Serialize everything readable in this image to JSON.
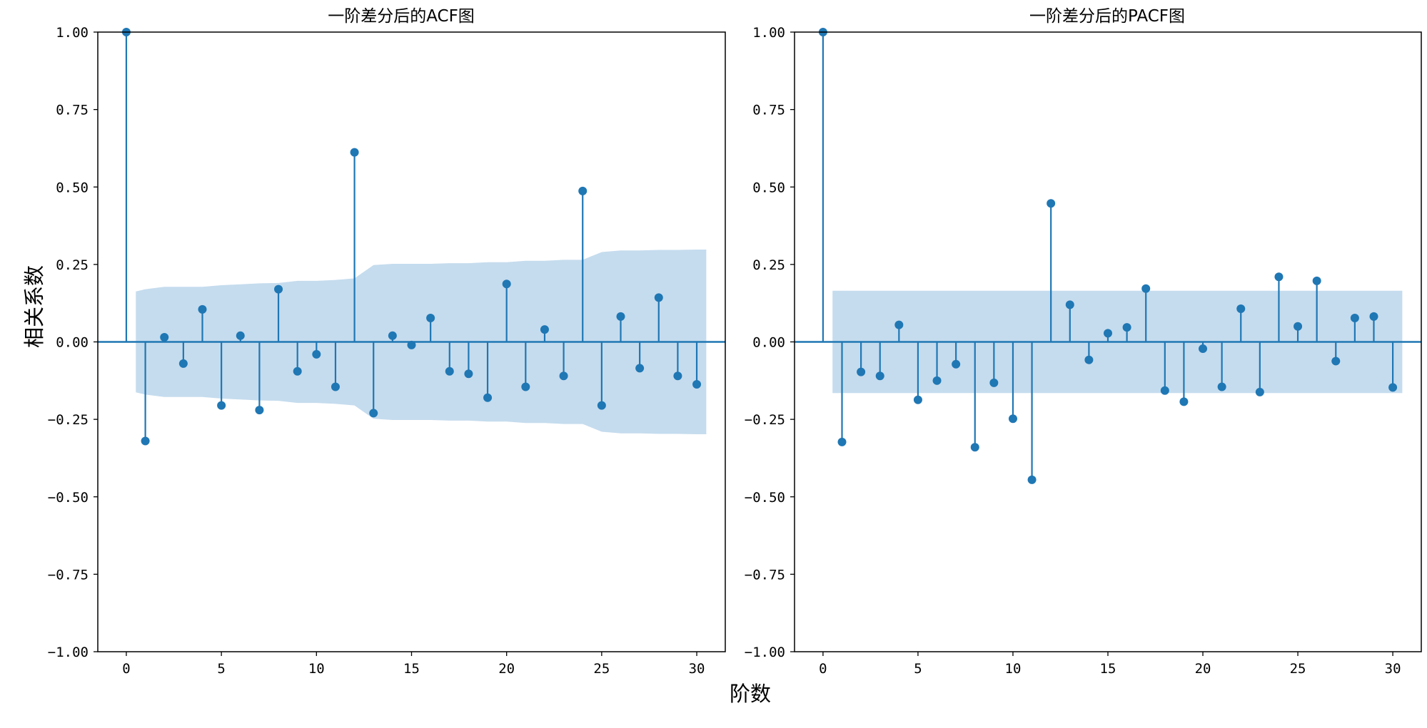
{
  "figure": {
    "xlabel": "阶数",
    "ylabel": "相关系数"
  },
  "colors": {
    "stem": "#1f77b4",
    "band": "#c5dcee",
    "axis": "#000000"
  },
  "chart_data": [
    {
      "type": "stem",
      "title": "一阶差分后的ACF图",
      "xlim": [
        -1.5,
        31.5
      ],
      "ylim": [
        -1.0,
        1.0
      ],
      "xticks": [
        0,
        5,
        10,
        15,
        20,
        25,
        30
      ],
      "xtick_labels": [
        "0",
        "5",
        "10",
        "15",
        "20",
        "25",
        "30"
      ],
      "yticks": [
        1.0,
        0.75,
        0.5,
        0.25,
        0.0,
        -0.25,
        -0.5,
        -0.75,
        -1.0
      ],
      "ytick_labels": [
        "1.00",
        "0.75",
        "0.50",
        "0.25",
        "0.00",
        "−0.25",
        "−0.50",
        "−0.75",
        "−1.00"
      ],
      "x": [
        0,
        1,
        2,
        3,
        4,
        5,
        6,
        7,
        8,
        9,
        10,
        11,
        12,
        13,
        14,
        15,
        16,
        17,
        18,
        19,
        20,
        21,
        22,
        23,
        24,
        25,
        26,
        27,
        28,
        29,
        30
      ],
      "values": [
        1.0,
        -0.32,
        0.015,
        -0.07,
        0.105,
        -0.205,
        0.02,
        -0.22,
        0.17,
        -0.095,
        -0.04,
        -0.145,
        0.612,
        -0.23,
        0.02,
        -0.01,
        0.077,
        -0.095,
        -0.103,
        -0.18,
        0.187,
        -0.145,
        0.04,
        -0.11,
        0.487,
        -0.205,
        0.082,
        -0.085,
        0.143,
        -0.11,
        -0.137
      ],
      "confidence_band": {
        "x": [
          0.5,
          1,
          2,
          3,
          4,
          5,
          6,
          7,
          8,
          9,
          10,
          11,
          12,
          13,
          14,
          15,
          16,
          17,
          18,
          19,
          20,
          21,
          22,
          23,
          24,
          25,
          26,
          27,
          28,
          29,
          30,
          30.5
        ],
        "upper": [
          0.163,
          0.17,
          0.178,
          0.178,
          0.178,
          0.183,
          0.186,
          0.189,
          0.19,
          0.197,
          0.197,
          0.2,
          0.205,
          0.248,
          0.252,
          0.252,
          0.252,
          0.254,
          0.254,
          0.257,
          0.257,
          0.262,
          0.262,
          0.265,
          0.265,
          0.29,
          0.295,
          0.295,
          0.297,
          0.297,
          0.298,
          0.298
        ]
      },
      "confidence_band_symmetric": true
    },
    {
      "type": "stem",
      "title": "一阶差分后的PACF图",
      "xlim": [
        -1.5,
        31.5
      ],
      "ylim": [
        -1.0,
        1.0
      ],
      "xticks": [
        0,
        5,
        10,
        15,
        20,
        25,
        30
      ],
      "xtick_labels": [
        "0",
        "5",
        "10",
        "15",
        "20",
        "25",
        "30"
      ],
      "yticks": [
        1.0,
        0.75,
        0.5,
        0.25,
        0.0,
        -0.25,
        -0.5,
        -0.75,
        -1.0
      ],
      "ytick_labels": [
        "1.00",
        "0.75",
        "0.50",
        "0.25",
        "0.00",
        "−0.25",
        "−0.50",
        "−0.75",
        "−1.00"
      ],
      "x": [
        0,
        1,
        2,
        3,
        4,
        5,
        6,
        7,
        8,
        9,
        10,
        11,
        12,
        13,
        14,
        15,
        16,
        17,
        18,
        19,
        20,
        21,
        22,
        23,
        24,
        25,
        26,
        27,
        28,
        29,
        30
      ],
      "values": [
        1.0,
        -0.323,
        -0.097,
        -0.11,
        0.055,
        -0.187,
        -0.125,
        -0.072,
        -0.34,
        -0.132,
        -0.248,
        -0.445,
        0.447,
        0.12,
        -0.058,
        0.028,
        0.047,
        0.172,
        -0.157,
        -0.193,
        -0.022,
        -0.145,
        0.107,
        -0.162,
        0.21,
        0.05,
        0.197,
        -0.062,
        0.077,
        0.082,
        -0.147
      ],
      "confidence_band": {
        "x": [
          0.5,
          30.5
        ],
        "upper": [
          0.165,
          0.165
        ]
      },
      "confidence_band_symmetric": true
    }
  ]
}
